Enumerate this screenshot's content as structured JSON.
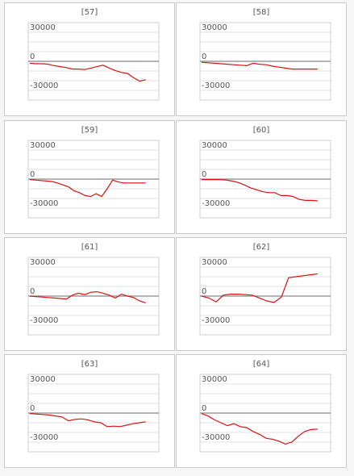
{
  "colors": {
    "line": "#dd1111",
    "axis": "#888888",
    "grid": "#e2e2e2",
    "plot_border": "#cfcfcf",
    "text": "#555555"
  },
  "chart_data": [
    {
      "type": "line",
      "title": "[57]",
      "xlabel": "",
      "ylabel": "",
      "grid": true,
      "yticks": [
        "30000",
        "0",
        "-30000"
      ],
      "ylim": [
        -40000,
        40000
      ],
      "series": [
        {
          "values": [
            -2000,
            -2500,
            -2500,
            -3000,
            -4500,
            -5500,
            -6500,
            -8000,
            -8000,
            -8500,
            -7000,
            -5500,
            -4000,
            -7000,
            -9500,
            -11500,
            -12500,
            -17000,
            -20500,
            -19000
          ]
        }
      ]
    },
    {
      "type": "line",
      "title": "[58]",
      "xlabel": "",
      "ylabel": "",
      "grid": true,
      "yticks": [
        "30000",
        "0",
        "-30000"
      ],
      "ylim": [
        -40000,
        40000
      ],
      "series": [
        {
          "values": [
            -1000,
            -1500,
            -2000,
            -2500,
            -3000,
            -3500,
            -4000,
            -4500,
            -2000,
            -3000,
            -3500,
            -5000,
            -6000,
            -7000,
            -8000,
            -8000,
            -8000,
            -8000,
            -8000
          ]
        }
      ]
    },
    {
      "type": "line",
      "title": "[59]",
      "xlabel": "",
      "ylabel": "",
      "grid": true,
      "yticks": [
        "30000",
        "0",
        "-30000"
      ],
      "ylim": [
        -40000,
        40000
      ],
      "series": [
        {
          "values": [
            -500,
            -1000,
            -1500,
            -2000,
            -2500,
            -4000,
            -6000,
            -8000,
            -12000,
            -14000,
            -17000,
            -18000,
            -15000,
            -18000,
            -10000,
            -1000,
            -3000,
            -4000,
            -4000,
            -4000,
            -4000,
            -4000
          ]
        }
      ]
    },
    {
      "type": "line",
      "title": "[60]",
      "xlabel": "",
      "ylabel": "",
      "grid": true,
      "yticks": [
        "30000",
        "0",
        "-30000"
      ],
      "ylim": [
        -40000,
        40000
      ],
      "series": [
        {
          "values": [
            -500,
            -500,
            -500,
            -500,
            -1000,
            -2000,
            -3500,
            -6000,
            -9000,
            -11000,
            -13000,
            -14000,
            -14000,
            -17000,
            -17000,
            -18000,
            -21000,
            -22000,
            -22000,
            -22500
          ]
        }
      ]
    },
    {
      "type": "line",
      "title": "[61]",
      "xlabel": "",
      "ylabel": "",
      "grid": true,
      "yticks": [
        "30000",
        "0",
        "-30000"
      ],
      "ylim": [
        -40000,
        40000
      ],
      "series": [
        {
          "values": [
            0,
            -500,
            -1000,
            -1500,
            -2000,
            -2500,
            -3000,
            1000,
            3000,
            1500,
            4000,
            4500,
            3000,
            1000,
            -2000,
            2000,
            0,
            -1500,
            -5000,
            -7000
          ]
        }
      ]
    },
    {
      "type": "line",
      "title": "[62]",
      "xlabel": "",
      "ylabel": "",
      "grid": true,
      "yticks": [
        "30000",
        "0",
        "-30000"
      ],
      "ylim": [
        -40000,
        40000
      ],
      "series": [
        {
          "values": [
            0,
            -2000,
            -6000,
            1000,
            2000,
            2000,
            1500,
            1000,
            -2000,
            -5000,
            -6500,
            -1000,
            19000,
            20000,
            21000,
            22000,
            23000
          ]
        }
      ]
    },
    {
      "type": "line",
      "title": "[63]",
      "xlabel": "",
      "ylabel": "",
      "grid": true,
      "yticks": [
        "30000",
        "0",
        "-30000"
      ],
      "ylim": [
        -40000,
        40000
      ],
      "series": [
        {
          "values": [
            -500,
            -1000,
            -1500,
            -2000,
            -3000,
            -4000,
            -8000,
            -6500,
            -6000,
            -7000,
            -9000,
            -10000,
            -14000,
            -13500,
            -14000,
            -12500,
            -11000,
            -10000,
            -9000
          ]
        }
      ]
    },
    {
      "type": "line",
      "title": "[64]",
      "xlabel": "",
      "ylabel": "",
      "grid": true,
      "yticks": [
        "30000",
        "0",
        "-30000"
      ],
      "ylim": [
        -40000,
        40000
      ],
      "series": [
        {
          "values": [
            -500,
            -3000,
            -7000,
            -10000,
            -13000,
            -11000,
            -14000,
            -15000,
            -19000,
            -22000,
            -26000,
            -27000,
            -29000,
            -32000,
            -30000,
            -24000,
            -19000,
            -17000,
            -16500
          ]
        }
      ]
    }
  ]
}
